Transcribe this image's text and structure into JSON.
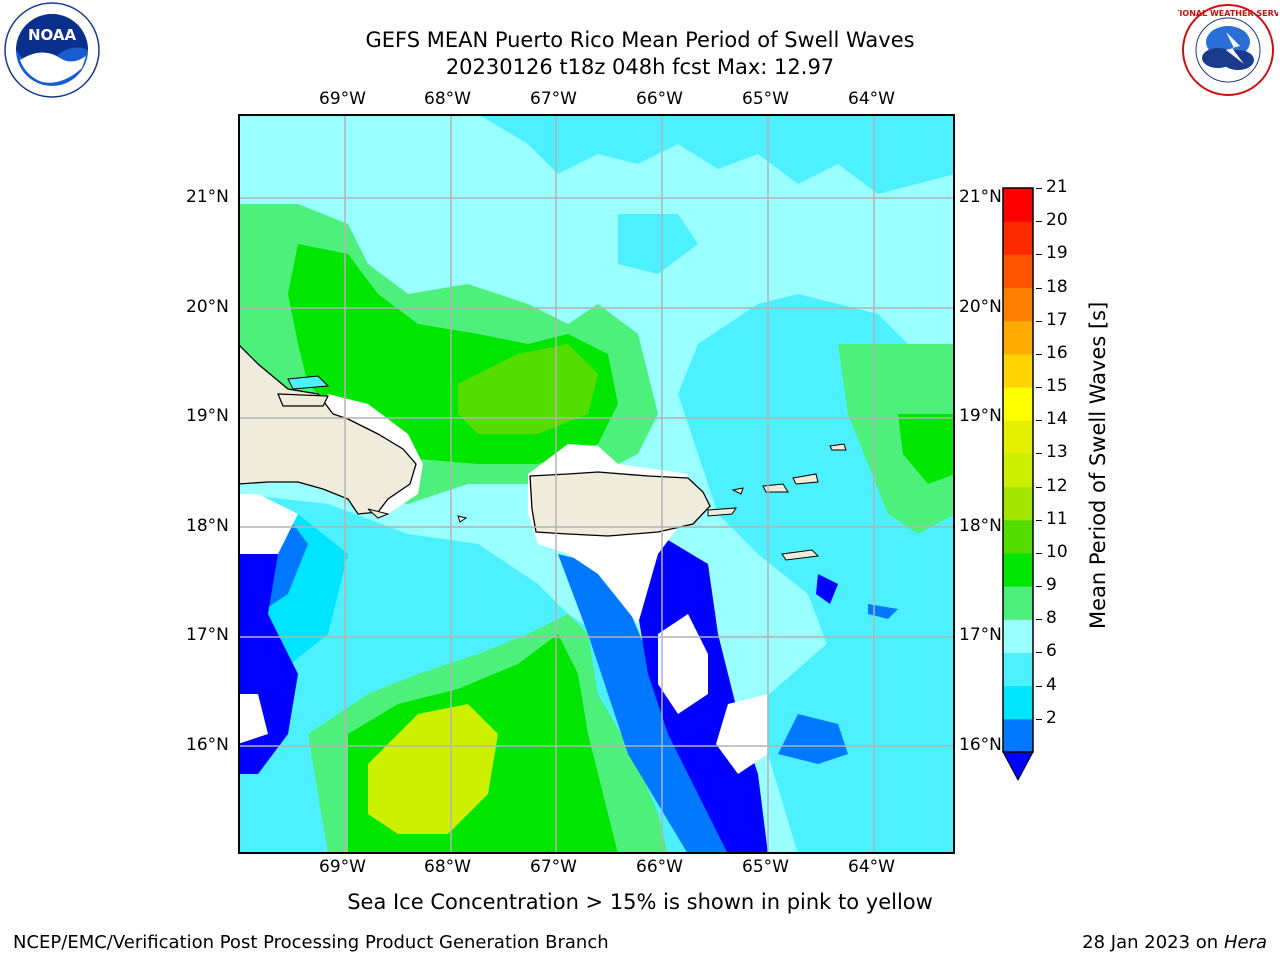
{
  "header": {
    "title_line1": "GEFS MEAN Puerto Rico Mean Period of Swell Waves",
    "title_line2": "20230126 t18z 048h fcst   Max: 12.97"
  },
  "logos": {
    "left": {
      "name": "noaa-logo",
      "text": "NOAA"
    },
    "right": {
      "name": "nws-logo",
      "text": "NATIONAL WEATHER SERVICE"
    }
  },
  "map": {
    "lon_labels": [
      "69°W",
      "68°W",
      "67°W",
      "66°W",
      "65°W",
      "64°W"
    ],
    "lat_labels": [
      "21°N",
      "20°N",
      "19°N",
      "18°N",
      "17°N",
      "16°N"
    ],
    "extent": {
      "lon": [
        -69.85,
        -63.1
      ],
      "lat": [
        15.0,
        21.75
      ]
    },
    "gridlines": true
  },
  "colorbar": {
    "title": "Mean Period of Swell Waves [s]",
    "ticks": [
      "21",
      "20",
      "19",
      "18",
      "17",
      "16",
      "15",
      "14",
      "13",
      "12",
      "11",
      "10",
      "9",
      "8",
      "6",
      "4",
      "2"
    ],
    "colors": [
      "#0000ff",
      "#0078ff",
      "#00e5ff",
      "#4cf0ff",
      "#99ffff",
      "#4cf07a",
      "#00e600",
      "#55dd00",
      "#a5e600",
      "#ccf000",
      "#e5f000",
      "#ffff00",
      "#ffd400",
      "#ffaa00",
      "#ff7f00",
      "#ff5500",
      "#ff2a00",
      "#ff0000"
    ]
  },
  "bottom_note": "Sea Ice Concentration > 15% is shown in pink to yellow",
  "footer": {
    "left": "NCEP/EMC/Verification Post Processing Product Generation Branch",
    "right_date": "28 Jan 2023 on",
    "right_host": "Hera"
  }
}
